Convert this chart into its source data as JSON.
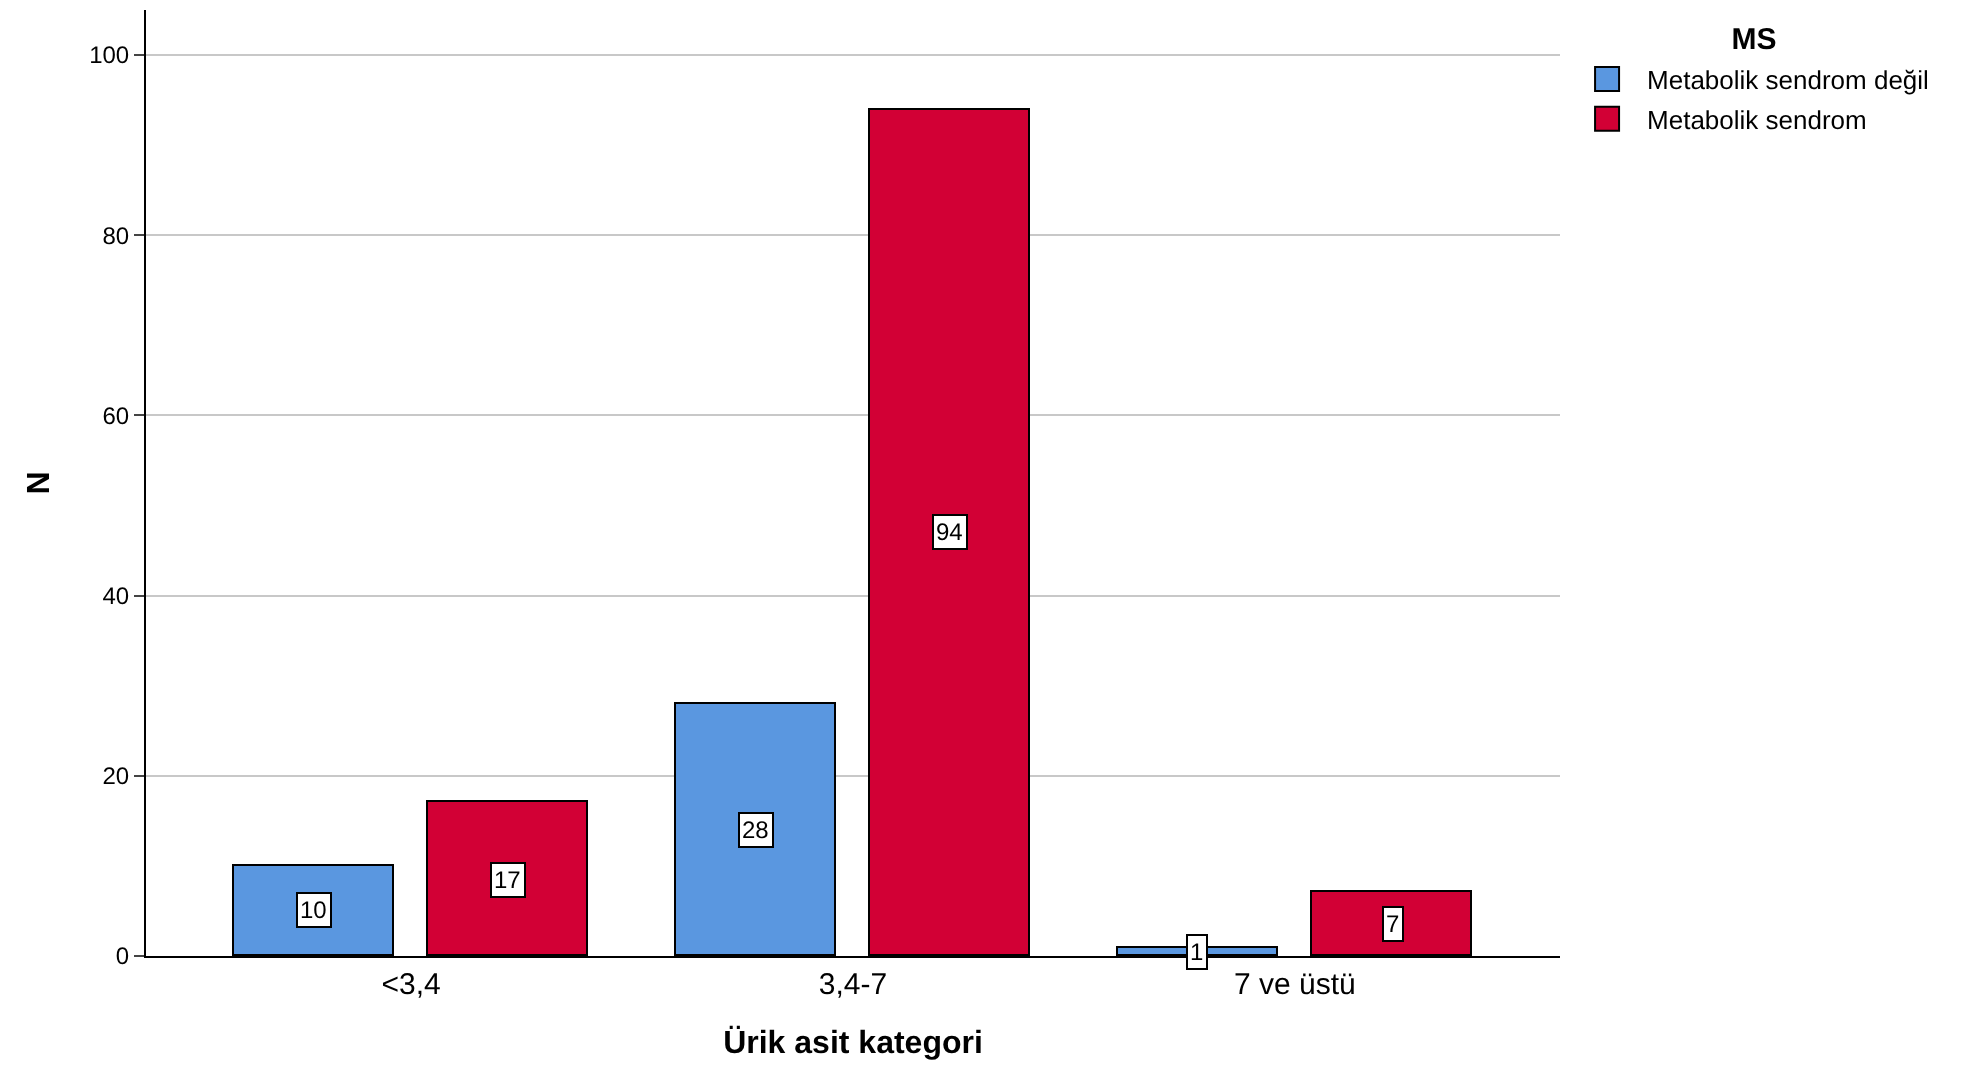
{
  "chart_data": {
    "type": "bar",
    "xlabel": "Ürik asit kategori",
    "ylabel": "N",
    "legend_title": "MS",
    "categories": [
      "<3,4",
      "3,4-7",
      "7 ve üstü"
    ],
    "series": [
      {
        "name": "Metabolik sendrom değil",
        "color": "#5a97e0",
        "values": [
          10,
          28,
          1
        ]
      },
      {
        "name": "Metabolik sendrom",
        "color": "#d20035",
        "values": [
          17,
          94,
          7
        ]
      }
    ],
    "ylim": [
      0,
      105
    ],
    "yticks": [
      0,
      20,
      40,
      60,
      80,
      100
    ],
    "grid": "y",
    "legend": "top right",
    "data_labels": true
  }
}
